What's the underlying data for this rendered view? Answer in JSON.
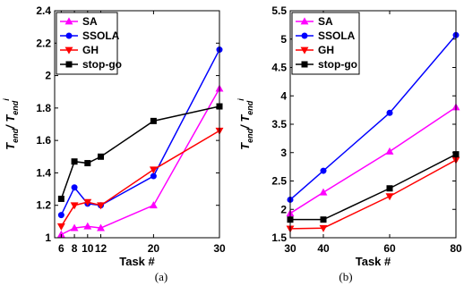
{
  "chart_data": [
    {
      "type": "line",
      "caption": "(a)",
      "xlabel": "Task #",
      "ylabel_main": "T",
      "ylabel_main_sub": "end",
      "ylabel_den": "/ T",
      "ylabel_den_sub": "end",
      "ylabel_den_sup": "i",
      "xlim": [
        5,
        30
      ],
      "ylim": [
        1,
        2.4
      ],
      "xticks": [
        6,
        8,
        10,
        12,
        20,
        30
      ],
      "xtick_labels": [
        "6",
        "8",
        "10",
        "12",
        "20",
        "30"
      ],
      "yticks": [
        1,
        1.2,
        1.4,
        1.6,
        1.8,
        2,
        2.2,
        2.4
      ],
      "ytick_labels": [
        "1",
        "1.2",
        "1.4",
        "1.6",
        "1.8",
        "2",
        "2.2",
        "2.4"
      ],
      "x": [
        6,
        8,
        10,
        12,
        20,
        30
      ],
      "legend_position": "top-left",
      "grid": false,
      "series": [
        {
          "name": "SA",
          "color": "#ff00ff",
          "marker": "triangle-up",
          "values": [
            1.02,
            1.06,
            1.07,
            1.06,
            1.2,
            1.92
          ]
        },
        {
          "name": "SSOLA",
          "color": "#0000ff",
          "marker": "circle",
          "values": [
            1.14,
            1.31,
            1.21,
            1.2,
            1.38,
            2.16
          ]
        },
        {
          "name": "GH",
          "color": "#ff0000",
          "marker": "triangle-down",
          "values": [
            1.07,
            1.2,
            1.22,
            1.2,
            1.42,
            1.66
          ]
        },
        {
          "name": "stop-go",
          "color": "#000000",
          "marker": "square",
          "values": [
            1.24,
            1.47,
            1.46,
            1.5,
            1.72,
            1.81
          ]
        }
      ]
    },
    {
      "type": "line",
      "caption": "(b)",
      "xlabel": "Task #",
      "ylabel_main": "T",
      "ylabel_main_sub": "end",
      "ylabel_den": "/ T",
      "ylabel_den_sub": "end",
      "ylabel_den_sup": "i",
      "xlim": [
        30,
        80
      ],
      "ylim": [
        1.5,
        5.5
      ],
      "xticks": [
        30,
        40,
        60,
        80
      ],
      "xtick_labels": [
        "30",
        "40",
        "60",
        "80"
      ],
      "yticks": [
        1.5,
        2,
        2.5,
        3,
        3.5,
        4,
        4.5,
        5,
        5.5
      ],
      "ytick_labels": [
        "1.5",
        "2",
        "2.5",
        "3",
        "3.5",
        "4",
        "4.5",
        "5",
        "5.5"
      ],
      "x": [
        30,
        40,
        60,
        80
      ],
      "legend_position": "top-left",
      "grid": false,
      "series": [
        {
          "name": "SA",
          "color": "#ff00ff",
          "marker": "triangle-up",
          "values": [
            1.93,
            2.3,
            3.02,
            3.8
          ]
        },
        {
          "name": "SSOLA",
          "color": "#0000ff",
          "marker": "circle",
          "values": [
            2.17,
            2.68,
            3.7,
            5.07
          ]
        },
        {
          "name": "GH",
          "color": "#ff0000",
          "marker": "triangle-down",
          "values": [
            1.66,
            1.67,
            2.23,
            2.87
          ]
        },
        {
          "name": "stop-go",
          "color": "#000000",
          "marker": "square",
          "values": [
            1.82,
            1.82,
            2.37,
            2.97
          ]
        }
      ]
    }
  ]
}
